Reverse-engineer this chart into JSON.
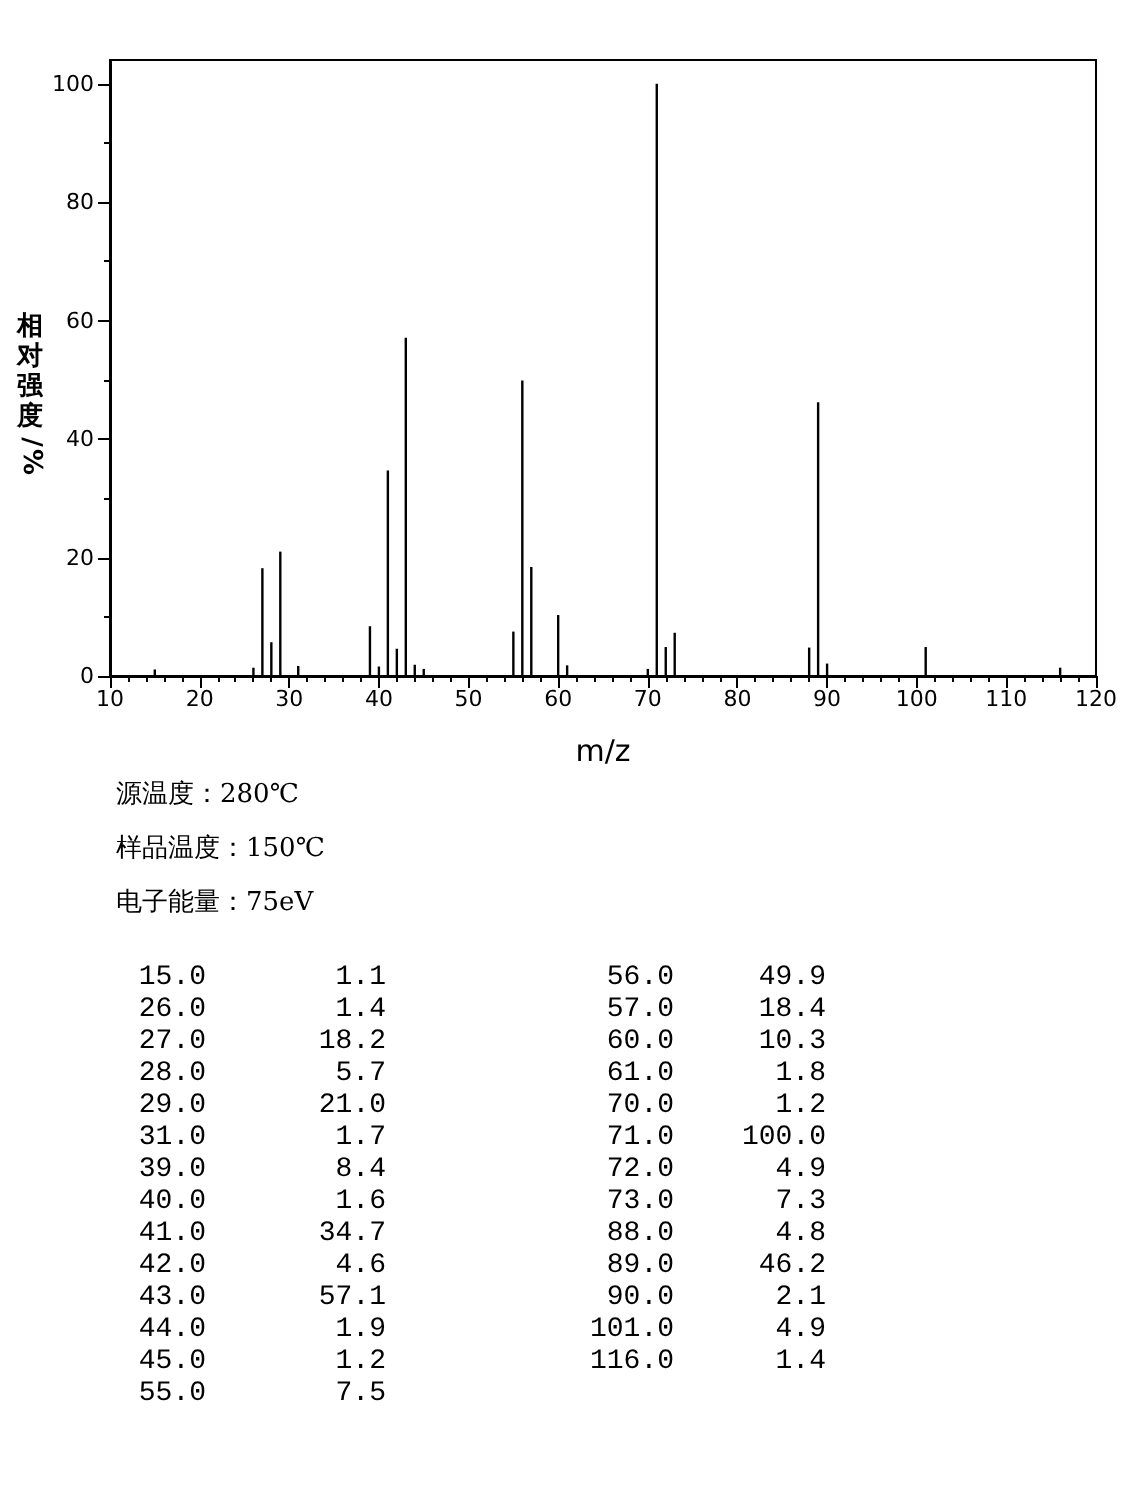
{
  "chart_data": [
    {
      "type": "bar",
      "xlabel": "m/z",
      "ylabel": "相对强度/%",
      "x": [
        15,
        26,
        27,
        28,
        29,
        31,
        39,
        40,
        41,
        42,
        43,
        44,
        45,
        55,
        56,
        57,
        60,
        61,
        70,
        71,
        72,
        73,
        88,
        89,
        90,
        101,
        116
      ],
      "values": [
        1.1,
        1.4,
        18.2,
        5.7,
        21.0,
        1.7,
        8.4,
        1.6,
        34.7,
        4.6,
        57.1,
        1.9,
        1.2,
        7.5,
        49.9,
        18.4,
        10.3,
        1.8,
        1.2,
        100.0,
        4.9,
        7.3,
        4.8,
        46.2,
        2.1,
        4.9,
        1.4
      ],
      "color": "#000000",
      "xlim": [
        10,
        120
      ],
      "xticks": [
        10,
        20,
        30,
        40,
        50,
        60,
        70,
        80,
        90,
        100,
        110,
        120
      ],
      "ylim": [
        0,
        104
      ],
      "yticks": [
        0,
        20,
        40,
        60,
        80,
        100
      ],
      "grid": false,
      "annotations": [
        "源温度：280℃",
        "样品温度：150℃",
        "电子能量：75eV"
      ]
    },
    {
      "type": "other",
      "categories": [
        "15.0",
        "26.0",
        "27.0",
        "28.0",
        "29.0",
        "31.0",
        "39.0",
        "40.0",
        "41.0",
        "42.0",
        "43.0",
        "44.0",
        "45.0",
        "55.0",
        "56.0",
        "57.0",
        "60.0",
        "61.0",
        "70.0",
        "71.0",
        "72.0",
        "73.0",
        "88.0",
        "89.0",
        "90.0",
        "101.0",
        "116.0"
      ],
      "value_labels": [
        "1.1",
        "1.4",
        "18.2",
        "5.7",
        "21.0",
        "1.7",
        "8.4",
        "1.6",
        "34.7",
        "4.6",
        "57.1",
        "1.9",
        "1.2",
        "7.5",
        "49.9",
        "18.4",
        "10.3",
        "1.8",
        "1.2",
        "100.0",
        "4.9",
        "7.3",
        "4.8",
        "46.2",
        "2.1",
        "4.9",
        "1.4"
      ]
    }
  ]
}
